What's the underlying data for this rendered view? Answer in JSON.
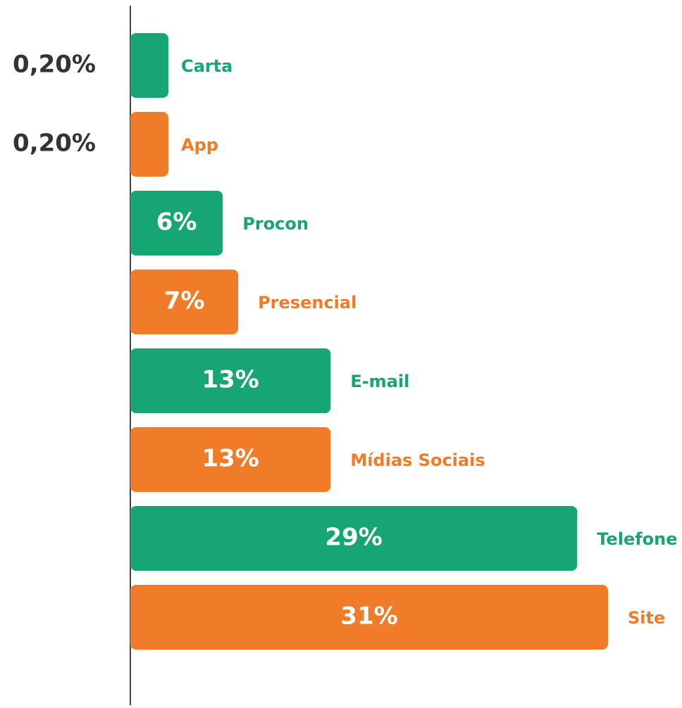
{
  "chart_data": {
    "type": "barh",
    "categories": [
      "Carta",
      "App",
      "Procon",
      "Presencial",
      "E-mail",
      "Mídias Sociais",
      "Telefone",
      "Site"
    ],
    "values": [
      0.2,
      0.2,
      6,
      7,
      13,
      13,
      29,
      31
    ],
    "value_labels": [
      "0,20%",
      "0,20%",
      "6%",
      "7%",
      "13%",
      "13%",
      "29%",
      "31%"
    ],
    "colors": [
      "#17a673",
      "#f07c2a",
      "#17a673",
      "#f07c2a",
      "#17a673",
      "#f07c2a",
      "#17a673",
      "#f07c2a"
    ],
    "xlim": [
      0,
      31
    ]
  }
}
